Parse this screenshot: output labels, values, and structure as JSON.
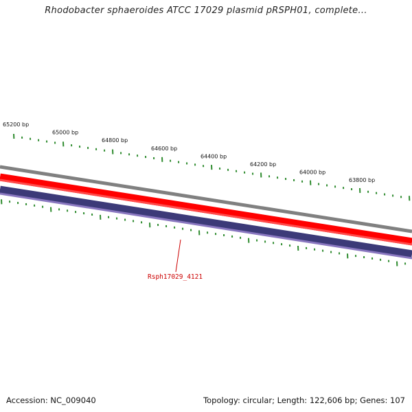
{
  "title": "Rhodobacter sphaeroides ATCC 17029 plasmid pRSPH01, complete...",
  "ticks": [
    "65200 bp",
    "65000 bp",
    "64800 bp",
    "64600 bp",
    "64400 bp",
    "64200 bp",
    "64000 bp",
    "63800 bp"
  ],
  "gene": {
    "label": "Rsph17029_4121",
    "color": "#cc0000"
  },
  "tracks": {
    "backbone_color": "#808080",
    "forward_color": "#ff0000",
    "reverse_color": "#3c3a78",
    "tick_color": "#2e8b2e"
  },
  "footer": {
    "accession": "Accession: NC_009040",
    "summary": "Topology: circular; Length: 122,606 bp; Genes: 107"
  }
}
